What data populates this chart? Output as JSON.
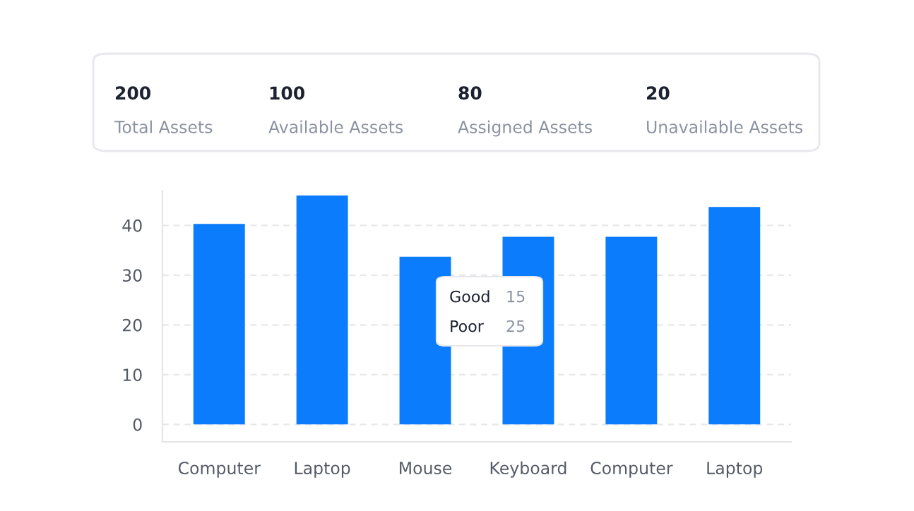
{
  "chart_data": [
    {
      "type": "other",
      "annotations": [
        "200",
        "Total Assets",
        "100",
        "Available Assets",
        "80",
        "Assigned Assets",
        "20",
        "Unavailable Assets"
      ]
    },
    {
      "type": "bar",
      "categories": [
        "Computer",
        "Laptop",
        "Mouse",
        "Keyboard",
        "Computer",
        "Laptop"
      ],
      "values": [
        40.3,
        46,
        33.7,
        37.7,
        37.7,
        43.7
      ],
      "color": "#0a7cfc",
      "ylim": [
        -3.5,
        47
      ],
      "yticks": [
        0,
        10,
        20,
        30,
        40
      ],
      "grid": "y",
      "annotations": [
        "Good",
        "15",
        "Poor",
        "25"
      ]
    }
  ]
}
